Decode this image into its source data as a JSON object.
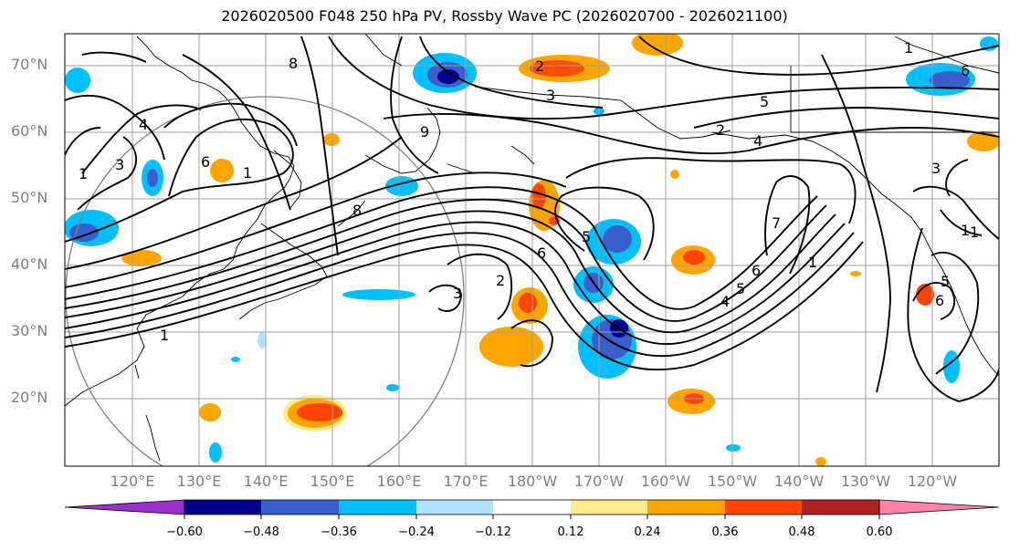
{
  "title": "2026020500 F048 250 hPa PV, Rossby Wave PC (2026020700 - 2026021100)",
  "map": {
    "lat_labels": [
      "70°N",
      "60°N",
      "50°N",
      "40°N",
      "30°N",
      "20°N"
    ],
    "lon_labels": [
      "120°E",
      "130°E",
      "140°E",
      "150°E",
      "160°E",
      "170°E",
      "180°W",
      "170°W",
      "160°W",
      "150°W",
      "140°W",
      "130°W",
      "120°W"
    ],
    "contour_labels": [
      "8",
      "5",
      "4",
      "3",
      "2",
      "1",
      "6",
      "7",
      "9"
    ]
  },
  "colorbar": {
    "ticks": [
      "−0.60",
      "−0.48",
      "−0.36",
      "−0.24",
      "−0.12",
      "0.12",
      "0.24",
      "0.36",
      "0.48",
      "0.60"
    ],
    "colors": [
      "#9932cc",
      "#00008b",
      "#3a5fcd",
      "#00bfff",
      "#b0e2ff",
      "#ffffff",
      "#ffec8b",
      "#ffa500",
      "#ff4500",
      "#b22222",
      "#ff82ab"
    ]
  },
  "colors": {
    "pos1": "#ffec8b",
    "pos2": "#ffa500",
    "pos3": "#ff4500",
    "pos4": "#b22222",
    "neg1": "#b0e2ff",
    "neg2": "#00bfff",
    "neg3": "#3a5fcd",
    "neg4": "#00008b",
    "grid": "#a0a0a0",
    "contour": "#000000"
  }
}
